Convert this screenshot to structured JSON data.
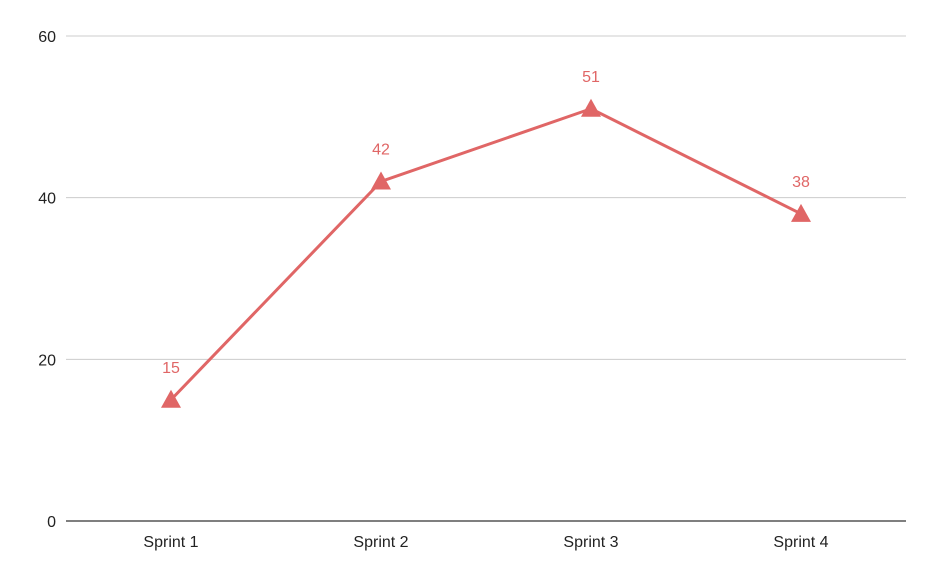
{
  "chart_data": {
    "type": "line",
    "categories": [
      "Sprint 1",
      "Sprint 2",
      "Sprint 3",
      "Sprint 4"
    ],
    "series": [
      {
        "values": [
          15,
          42,
          51,
          38
        ],
        "color": "#e06666",
        "marker": "triangle",
        "data_labels": [
          "15",
          "42",
          "51",
          "38"
        ]
      }
    ],
    "y_ticks": [
      "0",
      "20",
      "40",
      "60"
    ],
    "ylim": [
      0,
      60
    ],
    "grid": true,
    "legend": "none",
    "colors": {
      "grid": "#cccccc",
      "baseline": "#333333",
      "tick_text": "#222222"
    }
  }
}
